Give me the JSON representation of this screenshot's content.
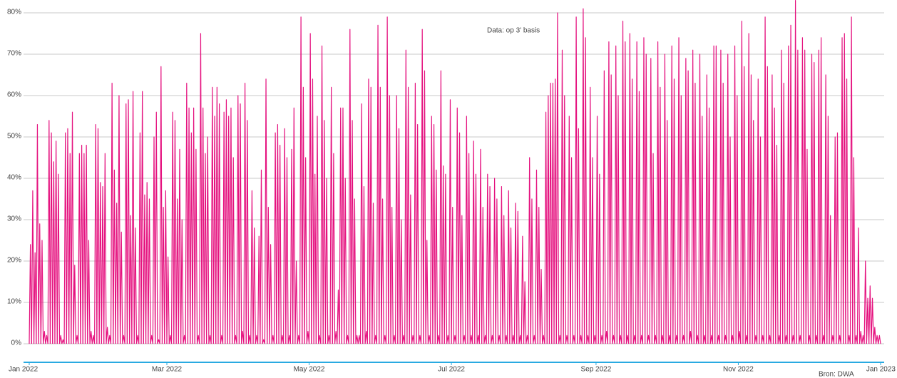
{
  "chart_data": {
    "type": "line",
    "annotation": "Data: op 3' basis",
    "source": "Bron: DWA",
    "color": "#e5127f",
    "grid": true,
    "xlim": [
      0,
      365
    ],
    "xticks": [
      {
        "value": 0,
        "label": "Jan 2022"
      },
      {
        "value": 59,
        "label": "Mar 2022"
      },
      {
        "value": 120,
        "label": "May 2022"
      },
      {
        "value": 181,
        "label": "Jul 2022"
      },
      {
        "value": 243,
        "label": "Sep 2022"
      },
      {
        "value": 304,
        "label": "Nov 2022"
      },
      {
        "value": 365,
        "label": "Jan 2023"
      }
    ],
    "ylim": [
      0,
      80
    ],
    "yticks": [
      {
        "value": 0,
        "label": "0%"
      },
      {
        "value": 10,
        "label": "10%"
      },
      {
        "value": 20,
        "label": "20%"
      },
      {
        "value": 30,
        "label": "30%"
      },
      {
        "value": 40,
        "label": "40%"
      },
      {
        "value": 50,
        "label": "50%"
      },
      {
        "value": 60,
        "label": "60%"
      },
      {
        "value": 70,
        "label": "70%"
      },
      {
        "value": 80,
        "label": "80%"
      }
    ],
    "values": [
      24,
      37,
      22,
      53,
      29,
      25,
      3,
      2,
      54,
      51,
      44,
      49,
      41,
      2,
      1,
      51,
      52,
      46,
      56,
      19,
      2,
      46,
      48,
      46,
      48,
      25,
      3,
      2,
      53,
      52,
      39,
      38,
      46,
      4,
      2,
      63,
      42,
      34,
      60,
      27,
      2,
      58,
      59,
      31,
      61,
      28,
      2,
      51,
      61,
      36,
      39,
      35,
      2,
      50,
      56,
      1,
      67,
      33,
      37,
      21,
      2,
      56,
      54,
      35,
      47,
      30,
      2,
      63,
      57,
      51,
      57,
      47,
      2,
      75,
      57,
      46,
      50,
      2,
      62,
      55,
      62,
      58,
      2,
      56,
      59,
      55,
      57,
      45,
      2,
      60,
      58,
      3,
      63,
      54,
      2,
      37,
      28,
      2,
      26,
      42,
      1,
      64,
      33,
      24,
      2,
      51,
      53,
      48,
      2,
      52,
      45,
      2,
      47,
      57,
      20,
      2,
      79,
      62,
      45,
      3,
      75,
      64,
      41,
      55,
      2,
      72,
      54,
      40,
      2,
      62,
      46,
      3,
      13,
      57,
      57,
      40,
      2,
      76,
      54,
      35,
      2,
      2,
      58,
      38,
      3,
      64,
      62,
      34,
      2,
      77,
      62,
      35,
      2,
      79,
      60,
      33,
      2,
      60,
      52,
      30,
      2,
      71,
      62,
      36,
      2,
      63,
      53,
      2,
      76,
      66,
      25,
      2,
      55,
      53,
      42,
      2,
      66,
      43,
      41,
      2,
      59,
      33,
      2,
      57,
      51,
      31,
      2,
      55,
      46,
      2,
      49,
      41,
      2,
      47,
      33,
      2,
      41,
      38,
      2,
      40,
      35,
      2,
      38,
      31,
      2,
      37,
      28,
      2,
      34,
      32,
      2,
      26,
      15,
      2,
      45,
      35,
      2,
      42,
      33,
      18,
      2,
      56,
      60,
      63,
      63,
      64,
      80,
      2,
      71,
      60,
      2,
      55,
      45,
      2,
      79,
      52,
      2,
      81,
      74,
      2,
      62,
      45,
      2,
      55,
      41,
      2,
      66,
      3,
      73,
      65,
      2,
      72,
      60,
      2,
      78,
      73,
      2,
      75,
      64,
      2,
      73,
      61,
      2,
      74,
      70,
      2,
      69,
      46,
      2,
      73,
      62,
      2,
      70,
      54,
      2,
      72,
      64,
      2,
      74,
      60,
      2,
      69,
      66,
      3,
      71,
      63,
      2,
      70,
      55,
      2,
      65,
      57,
      2,
      72,
      72,
      2,
      71,
      63,
      2,
      70,
      50,
      2,
      72,
      60,
      3,
      78,
      67,
      2,
      75,
      65,
      54,
      2,
      64,
      50,
      2,
      79,
      67,
      2,
      65,
      57,
      48,
      2,
      71,
      63,
      2,
      72,
      77,
      2,
      83,
      71,
      2,
      74,
      71,
      47,
      2,
      70,
      68,
      2,
      71,
      74,
      2,
      65,
      55,
      31,
      2,
      50,
      51,
      2,
      74,
      75,
      64,
      2,
      79,
      45,
      2,
      28,
      3,
      2,
      20,
      11,
      14,
      11,
      4,
      2,
      2
    ]
  }
}
